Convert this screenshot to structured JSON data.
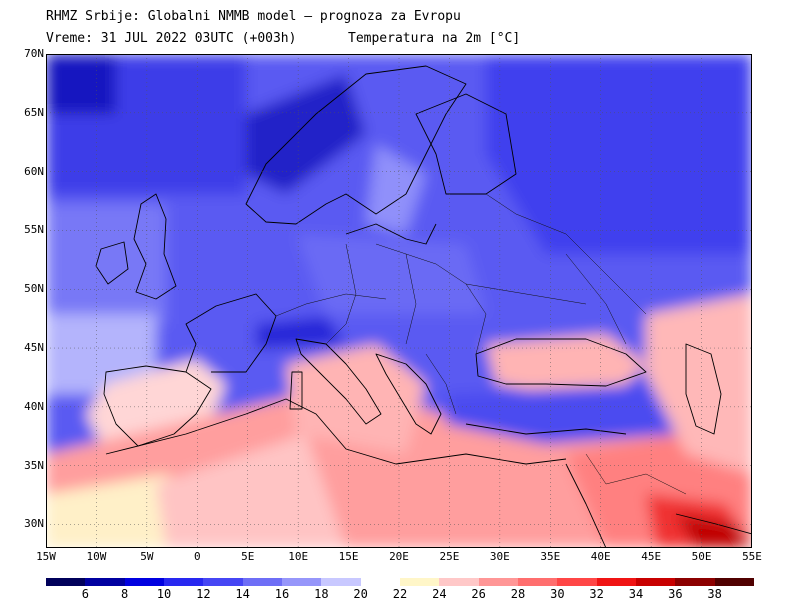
{
  "header": {
    "line1": "RHMZ Srbije: Globalni NMMB model — prognoza za Evropu",
    "line2_left": "Vreme: 31 JUL 2022 03UTC (+003h)",
    "line2_right": "Temperatura na 2m [°C]"
  },
  "map": {
    "lat_labels": [
      "70N",
      "65N",
      "60N",
      "55N",
      "50N",
      "45N",
      "40N",
      "35N",
      "30N"
    ],
    "lon_labels": [
      "15W",
      "10W",
      "5W",
      "0",
      "5E",
      "10E",
      "15E",
      "20E",
      "25E",
      "30E",
      "35E",
      "40E",
      "45E",
      "50E",
      "55E"
    ],
    "lat_range": [
      28,
      70
    ],
    "lon_range": [
      -15,
      55
    ],
    "grid": "dotted"
  },
  "colorbar": {
    "labels": [
      "6",
      "8",
      "10",
      "12",
      "14",
      "16",
      "18",
      "20",
      "22",
      "24",
      "26",
      "28",
      "30",
      "32",
      "34",
      "36",
      "38"
    ],
    "colors": [
      "#00005a",
      "#0000a0",
      "#0000e0",
      "#2828f0",
      "#4646f4",
      "#6e6ef6",
      "#9696fa",
      "#c8c8ff",
      "#ffffff",
      "#fff6c8",
      "#ffc8c8",
      "#ff9696",
      "#ff6e6e",
      "#ff4646",
      "#f01414",
      "#c80000",
      "#8c0000",
      "#500000"
    ]
  }
}
